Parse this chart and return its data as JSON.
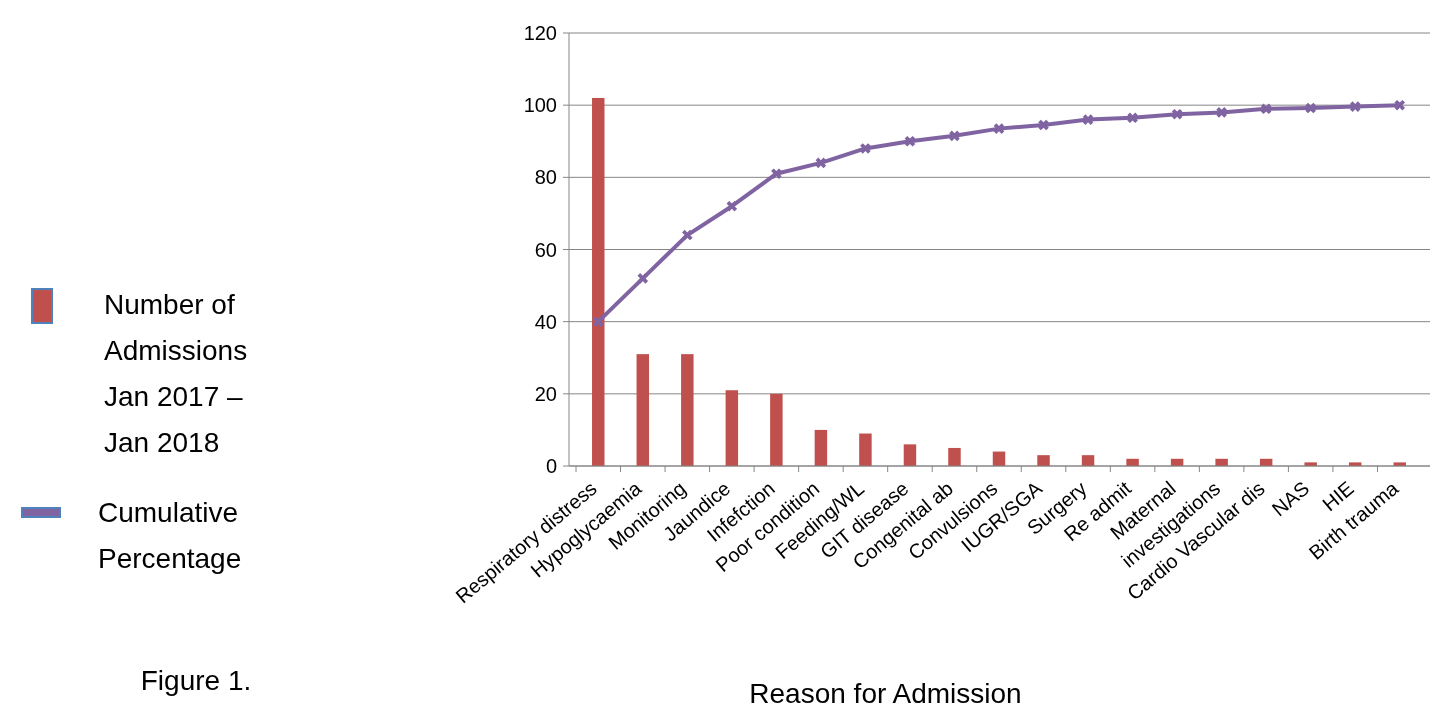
{
  "chart_data": {
    "type": "bar",
    "categories": [
      "Respiratory distress",
      "Hypoglycaemia",
      "Monitoring",
      "Jaundice",
      "Infefction",
      "Poor condition",
      "Feeding/WL",
      "GIT disease",
      "Congenital ab",
      "Convulsions",
      "IUGR/SGA",
      "Surgery",
      "Re admit",
      "Maternal",
      "investigations",
      "Cardio Vascular dis",
      "NAS",
      "HIE",
      "Birth trauma"
    ],
    "series": [
      {
        "name": "Number of Admissions Jan 2017 – Jan 2018",
        "color": "#c0504d",
        "values": [
          102,
          31,
          31,
          21,
          20,
          10,
          9,
          6,
          5,
          4,
          3,
          3,
          2,
          2,
          2,
          2,
          1,
          1,
          1
        ]
      },
      {
        "name": "Cumulative Percentage",
        "type": "line",
        "color": "#8064a2",
        "marker": "cross",
        "values": [
          40,
          52,
          64,
          72,
          81,
          84,
          88,
          90,
          91.5,
          93.5,
          94.5,
          96,
          96.5,
          97.5,
          98,
          99,
          99.2,
          99.6,
          100
        ]
      }
    ],
    "xlabel": "Reason for Admission",
    "ylim": [
      0,
      120
    ],
    "yticks": [
      0,
      20,
      40,
      60,
      80,
      100,
      120
    ],
    "grid": "y",
    "legend": "left",
    "annotations": [
      "Figure 1."
    ]
  }
}
